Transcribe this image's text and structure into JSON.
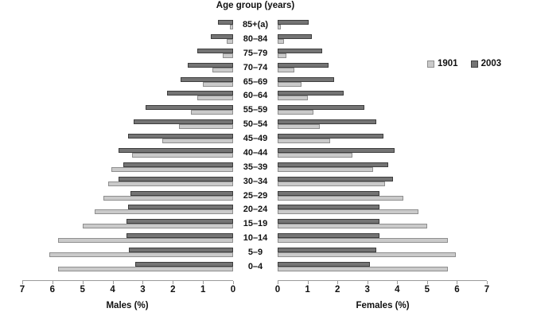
{
  "chart": {
    "title": "Age group (years)",
    "legend": {
      "items": [
        {
          "label": "1901",
          "color": "#cacaca",
          "border": "#8f8f8f"
        },
        {
          "label": "2003",
          "color": "#747474",
          "border": "#3e3e3e"
        }
      ]
    },
    "axes": {
      "male_title": "Males (%)",
      "female_title": "Females (%)",
      "male_ticks": [
        "7",
        "6",
        "5",
        "4",
        "3",
        "2",
        "1",
        "0"
      ],
      "female_ticks": [
        "0",
        "1",
        "2",
        "3",
        "4",
        "5",
        "6",
        "7"
      ],
      "axis_color": "#9a9a9a"
    }
  },
  "chart_data": {
    "type": "bar",
    "subtype": "population-pyramid",
    "title": "Age group (years)",
    "xlabel_left": "Males (%)",
    "xlabel_right": "Females (%)",
    "xlim": [
      0,
      7
    ],
    "grid": false,
    "legend_position": "right-upper",
    "categories_top_to_bottom": [
      "85+(a)",
      "80–84",
      "75–79",
      "70–74",
      "65–69",
      "60–64",
      "55–59",
      "50–54",
      "45–49",
      "40–44",
      "35–39",
      "30–34",
      "25–29",
      "20–24",
      "15–19",
      "10–14",
      "5–9",
      "0–4"
    ],
    "series": [
      {
        "name": "2003",
        "sex": "male",
        "color": "#747474",
        "border": "#3e3e3e",
        "values": [
          0.5,
          0.75,
          1.2,
          1.5,
          1.75,
          2.2,
          2.9,
          3.3,
          3.5,
          3.8,
          3.65,
          3.8,
          3.4,
          3.5,
          3.55,
          3.55,
          3.45,
          3.25
        ]
      },
      {
        "name": "1901",
        "sex": "male",
        "color": "#cacaca",
        "border": "#8f8f8f",
        "values": [
          0.1,
          0.2,
          0.35,
          0.7,
          1.0,
          1.2,
          1.4,
          1.8,
          2.35,
          3.35,
          4.05,
          4.15,
          4.3,
          4.6,
          5.0,
          5.8,
          6.1,
          5.8
        ]
      },
      {
        "name": "2003",
        "sex": "female",
        "color": "#747474",
        "border": "#3e3e3e",
        "values": [
          1.05,
          1.15,
          1.5,
          1.7,
          1.9,
          2.2,
          2.9,
          3.3,
          3.55,
          3.9,
          3.7,
          3.85,
          3.4,
          3.4,
          3.4,
          3.4,
          3.3,
          3.1
        ]
      },
      {
        "name": "1901",
        "sex": "female",
        "color": "#cacaca",
        "border": "#8f8f8f",
        "values": [
          0.1,
          0.2,
          0.3,
          0.55,
          0.8,
          1.0,
          1.2,
          1.4,
          1.75,
          2.5,
          3.2,
          3.6,
          4.2,
          4.7,
          5.0,
          5.7,
          5.95,
          5.7
        ]
      }
    ]
  }
}
